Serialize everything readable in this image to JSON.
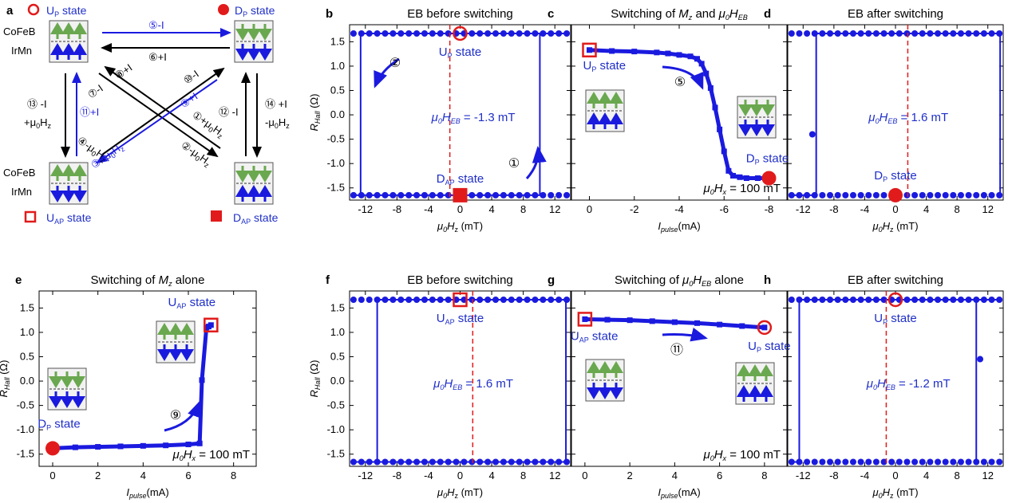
{
  "colors": {
    "blue": "#1a1adf",
    "red": "#e11b1b",
    "green": "#6aa84f",
    "black": "#000000",
    "stateblue": "#1f2fc8"
  },
  "schematic": {
    "panel_letter": "a",
    "states": {
      "up": "U",
      "dp": "D",
      "uap": "U",
      "dap": "D",
      "p_sub": "P",
      "ap_sub": "AP",
      "word": "state"
    },
    "layers": {
      "top": "CoFeB",
      "bottom": "IrMn",
      "top2": "CoFeB",
      "bottom2": "IrMn"
    },
    "arrows": {
      "a5": "⑤-I",
      "a6": "⑥+I",
      "a8": "⑧+I",
      "a7": "⑦-I",
      "a10": "⑩-I",
      "a9": "⑨+I",
      "a13a": "⑬ -I",
      "a13b": "+μ",
      "a13c": "0",
      "a13d": "H",
      "a13e": "z",
      "a11": "⑪+I",
      "a12": "⑫ -I",
      "a14a": "⑭ +I",
      "a14b": "-μ",
      "a14c": "0",
      "a14d": "H",
      "a14e": "z",
      "a4a": "④-μ",
      "a4b": "0",
      "a4c": "H",
      "a4d": "z",
      "a1a": "①+μ",
      "a1b": "0",
      "a1c": "H",
      "a1d": "z",
      "a3a": "③+μ",
      "a3b": "0",
      "a3c": "H",
      "a3d": "z",
      "a2a": "②-μ",
      "a2b": "0",
      "a2c": "H",
      "a2d": "z"
    }
  },
  "chart_data": [
    {
      "id": "b",
      "type": "line",
      "panel_letter": "b",
      "title": "EB before switching",
      "xlabel": "μ0Hz (mT)",
      "ylabel": "RHall (Ω)",
      "xlim": [
        -14,
        14
      ],
      "ylim": [
        -1.75,
        1.85
      ],
      "xticks": [
        -12,
        -8,
        -4,
        0,
        4,
        8,
        12
      ],
      "yticks": [
        -1.5,
        -1.0,
        -0.5,
        0.0,
        0.5,
        1.0,
        1.5
      ],
      "loop_low": -1.65,
      "loop_high": 1.67,
      "switch_up": 10.1,
      "switch_down": -12.6,
      "eb_line": -1.3,
      "eb_text": "μ0HEB = -1.3 mT",
      "markers": [
        {
          "x": 0,
          "y": 1.67,
          "shape": "open-circle",
          "label": "UP state"
        },
        {
          "x": 0,
          "y": -1.65,
          "shape": "filled-square",
          "label": "DAP state"
        }
      ],
      "annotations": [
        "②",
        "①"
      ]
    },
    {
      "id": "c",
      "type": "line",
      "panel_letter": "c",
      "title": "Switching of Mz and μ0HEB",
      "xlabel": "Ipulse(mA)",
      "ylabel": "",
      "xlim": [
        0.8,
        -8.8
      ],
      "ylim": [
        -1.75,
        1.85
      ],
      "xticks": [
        0,
        -2,
        -4,
        -6,
        -8
      ],
      "yticks": [],
      "x": [
        0,
        -1,
        -2,
        -3,
        -3.5,
        -4,
        -4.5,
        -4.8,
        -5.0,
        -5.2,
        -5.4,
        -5.6,
        -5.8,
        -6.0,
        -6.2,
        -6.4,
        -6.7,
        -7.0,
        -7.5,
        -8.0
      ],
      "y": [
        1.33,
        1.31,
        1.3,
        1.28,
        1.26,
        1.23,
        1.2,
        1.15,
        1.05,
        0.85,
        0.55,
        0.15,
        -0.3,
        -0.75,
        -1.15,
        -1.25,
        -1.28,
        -1.3,
        -1.3,
        -1.3
      ],
      "markers": [
        {
          "x": 0,
          "y": 1.33,
          "shape": "open-square",
          "label": "UP state"
        },
        {
          "x": -8,
          "y": -1.3,
          "shape": "filled-circle",
          "label": "DP state"
        }
      ],
      "field_text": "μ0Hx = 100 mT",
      "annotations": [
        "⑤"
      ]
    },
    {
      "id": "d",
      "type": "line",
      "panel_letter": "d",
      "title": "EB after switching",
      "xlabel": "μ0Hz (mT)",
      "ylabel": "",
      "xlim": [
        -14,
        14
      ],
      "ylim": [
        -1.75,
        1.85
      ],
      "xticks": [
        -12,
        -8,
        -4,
        0,
        4,
        8,
        12
      ],
      "yticks": [],
      "loop_low": -1.65,
      "loop_high": 1.67,
      "switch_up": -10.3,
      "switch_down": 13.6,
      "mid_point": {
        "x": -10.8,
        "y": -0.4
      },
      "eb_line": 1.6,
      "eb_text": "μ0HEB = 1.6 mT",
      "markers": [
        {
          "x": 0,
          "y": -1.65,
          "shape": "filled-circle",
          "label": "DP state"
        }
      ]
    },
    {
      "id": "e",
      "type": "line",
      "panel_letter": "e",
      "title": "Switching of Mz alone",
      "xlabel": "Ipulse(mA)",
      "ylabel": "RHall (Ω)",
      "xlim": [
        -0.6,
        9.0
      ],
      "ylim": [
        -1.75,
        1.85
      ],
      "xticks": [
        0,
        2,
        4,
        6,
        8
      ],
      "yticks": [
        -1.5,
        -1.0,
        -0.5,
        0.0,
        0.5,
        1.0,
        1.5
      ],
      "x": [
        0,
        1,
        2,
        3,
        4,
        5,
        6,
        6.5,
        6.6,
        6.8,
        6.9,
        7.0
      ],
      "y": [
        -1.38,
        -1.36,
        -1.35,
        -1.34,
        -1.33,
        -1.32,
        -1.3,
        -1.28,
        0.02,
        1.1,
        1.12,
        1.15
      ],
      "markers": [
        {
          "x": 0,
          "y": -1.38,
          "shape": "filled-circle",
          "label": "DP state"
        },
        {
          "x": 7.0,
          "y": 1.15,
          "shape": "open-square",
          "label": "UAP state"
        }
      ],
      "field_text": "μ0Hx = 100 mT",
      "annotations": [
        "⑨"
      ]
    },
    {
      "id": "f",
      "type": "line",
      "panel_letter": "f",
      "title": "EB before switching",
      "xlabel": "μ0Hz (mT)",
      "ylabel": "RHall (Ω)",
      "xlim": [
        -14,
        14
      ],
      "ylim": [
        -1.75,
        1.85
      ],
      "xticks": [
        -12,
        -8,
        -4,
        0,
        4,
        8,
        12
      ],
      "yticks": [
        -1.5,
        -1.0,
        -0.5,
        0.0,
        0.5,
        1.0,
        1.5
      ],
      "loop_low": -1.66,
      "loop_high": 1.67,
      "switch_up": 13.4,
      "switch_down": -10.5,
      "eb_line": 1.6,
      "eb_text": "μ0HEB = 1.6 mT",
      "markers": [
        {
          "x": 0,
          "y": 1.67,
          "shape": "open-square",
          "label": "UAP state"
        }
      ]
    },
    {
      "id": "g",
      "type": "line",
      "panel_letter": "g",
      "title": "Switching of μ0HEB alone",
      "xlabel": "Ipulse(mA)",
      "ylabel": "",
      "xlim": [
        -0.6,
        9.0
      ],
      "ylim": [
        -1.75,
        1.85
      ],
      "xticks": [
        0,
        2,
        4,
        6,
        8
      ],
      "yticks": [],
      "x": [
        0,
        1,
        2,
        3,
        4,
        5,
        6,
        7,
        8
      ],
      "y": [
        1.27,
        1.26,
        1.25,
        1.23,
        1.21,
        1.19,
        1.16,
        1.13,
        1.1
      ],
      "markers": [
        {
          "x": 0,
          "y": 1.27,
          "shape": "open-square",
          "label": "UAP state"
        },
        {
          "x": 8,
          "y": 1.1,
          "shape": "open-circle",
          "label": "UP state"
        }
      ],
      "field_text": "μ0Hx = 100 mT",
      "annotations": [
        "⑪"
      ]
    },
    {
      "id": "h",
      "type": "line",
      "panel_letter": "h",
      "title": "EB after switching",
      "xlabel": "μ0Hz (mT)",
      "ylabel": "",
      "xlim": [
        -14,
        14
      ],
      "ylim": [
        -1.75,
        1.85
      ],
      "xticks": [
        -12,
        -8,
        -4,
        0,
        4,
        8,
        12
      ],
      "yticks": [],
      "loop_low": -1.66,
      "loop_high": 1.67,
      "switch_up": -12.5,
      "switch_down": 10.5,
      "mid_point": {
        "x": 11.0,
        "y": 0.45
      },
      "eb_line": -1.2,
      "eb_text": "μ0HEB = -1.2 mT",
      "markers": [
        {
          "x": 0,
          "y": 1.67,
          "shape": "open-circle",
          "label": "UP state"
        }
      ]
    }
  ]
}
